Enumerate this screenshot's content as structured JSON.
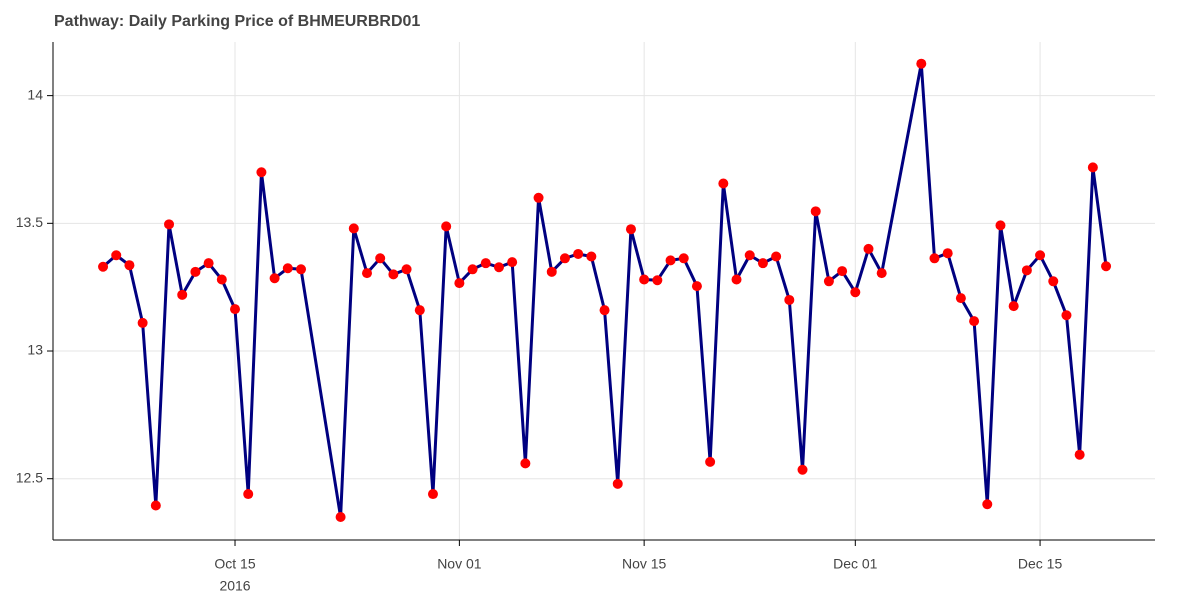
{
  "chart_data": {
    "type": "line",
    "title": "Pathway: Daily Parking Price of BHMEURBRD01",
    "x": [
      "2016-10-05",
      "2016-10-06",
      "2016-10-07",
      "2016-10-08",
      "2016-10-09",
      "2016-10-10",
      "2016-10-11",
      "2016-10-12",
      "2016-10-13",
      "2016-10-14",
      "2016-10-15",
      "2016-10-16",
      "2016-10-17",
      "2016-10-18",
      "2016-10-19",
      "2016-10-20",
      "2016-10-23",
      "2016-10-24",
      "2016-10-25",
      "2016-10-26",
      "2016-10-27",
      "2016-10-28",
      "2016-10-29",
      "2016-10-30",
      "2016-10-31",
      "2016-11-01",
      "2016-11-02",
      "2016-11-03",
      "2016-11-04",
      "2016-11-05",
      "2016-11-06",
      "2016-11-07",
      "2016-11-08",
      "2016-11-09",
      "2016-11-10",
      "2016-11-11",
      "2016-11-12",
      "2016-11-13",
      "2016-11-14",
      "2016-11-15",
      "2016-11-16",
      "2016-11-17",
      "2016-11-18",
      "2016-11-19",
      "2016-11-20",
      "2016-11-21",
      "2016-11-22",
      "2016-11-23",
      "2016-11-24",
      "2016-11-25",
      "2016-11-26",
      "2016-11-27",
      "2016-11-28",
      "2016-11-29",
      "2016-11-30",
      "2016-12-01",
      "2016-12-02",
      "2016-12-03",
      "2016-12-06",
      "2016-12-07",
      "2016-12-08",
      "2016-12-09",
      "2016-12-10",
      "2016-12-11",
      "2016-12-12",
      "2016-12-13",
      "2016-12-14",
      "2016-12-15",
      "2016-12-16",
      "2016-12-17",
      "2016-12-18",
      "2016-12-19",
      "2016-12-20"
    ],
    "series": [
      {
        "line_color": "#000080",
        "marker_color": "#ff0000",
        "values": [
          13.33,
          13.375,
          13.336,
          13.11,
          12.395,
          13.496,
          13.22,
          13.31,
          13.344,
          13.28,
          13.164,
          12.44,
          13.7,
          13.285,
          13.324,
          13.32,
          12.35,
          13.48,
          13.305,
          13.363,
          13.3,
          13.32,
          13.16,
          12.44,
          13.488,
          13.266,
          13.32,
          13.344,
          13.328,
          13.348,
          12.56,
          13.6,
          13.31,
          13.363,
          13.38,
          13.37,
          13.16,
          12.48,
          13.477,
          13.28,
          13.277,
          13.355,
          13.363,
          13.254,
          12.566,
          13.656,
          13.28,
          13.375,
          13.344,
          13.37,
          13.2,
          12.535,
          13.547,
          13.273,
          13.313,
          13.23,
          13.4,
          13.305,
          14.125,
          13.363,
          13.383,
          13.207,
          13.117,
          12.4,
          13.492,
          13.176,
          13.316,
          13.375,
          13.273,
          13.14,
          12.594,
          13.719,
          13.332
        ]
      }
    ],
    "xlim": [
      "2016-10-01T05:00",
      "2016-12-23T17:00"
    ],
    "xticks": [
      {
        "value": "2016-10-15",
        "label": "Oct 15",
        "year": "2016"
      },
      {
        "value": "2016-11-01",
        "label": "Nov 01"
      },
      {
        "value": "2016-11-15",
        "label": "Nov 15"
      },
      {
        "value": "2016-12-01",
        "label": "Dec 01"
      },
      {
        "value": "2016-12-15",
        "label": "Dec 15"
      }
    ],
    "ylim": [
      12.26,
      14.21
    ],
    "yticks": [
      12.5,
      13,
      13.5,
      14
    ],
    "grid": true
  }
}
